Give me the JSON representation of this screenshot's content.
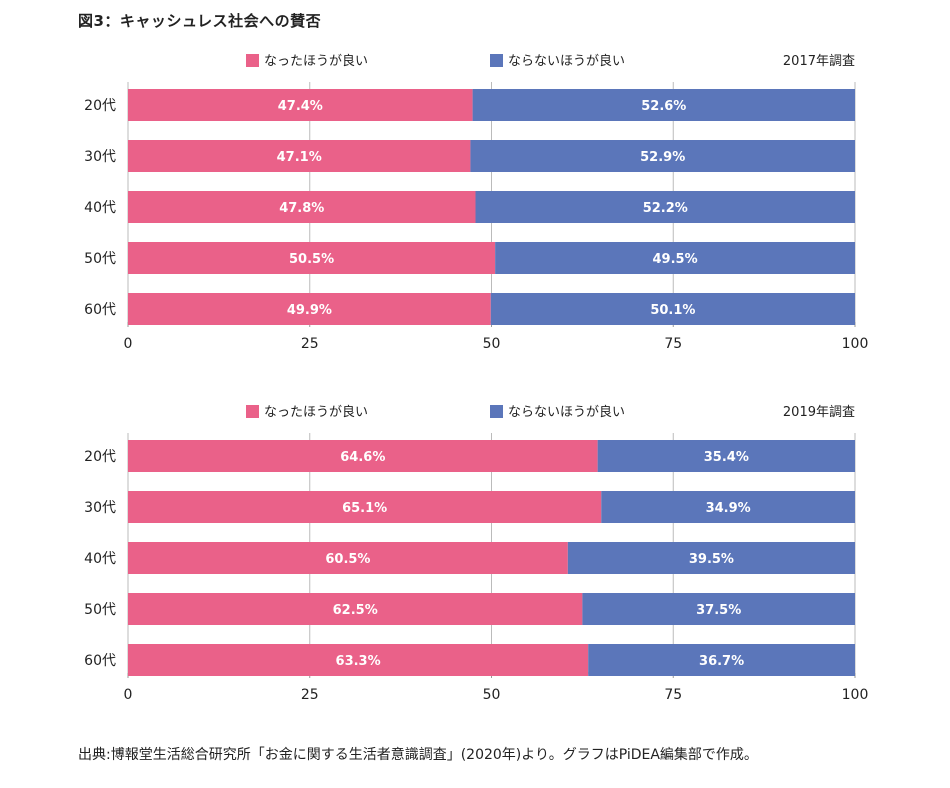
{
  "figure_title": "図3：キャッシュレス社会への賛否",
  "source_note": "出典:博報堂生活総合研究所「お金に関する生活者意識調査」(2020年)より。グラフはPiDEA編集部で作成。",
  "colors": {
    "series_a": "#ea6189",
    "series_b": "#5b76ba",
    "grid": "#bbbbbb"
  },
  "chart_data": [
    {
      "type": "bar",
      "orientation": "horizontal",
      "stacked": true,
      "survey_label": "2017年調査",
      "categories": [
        "20代",
        "30代",
        "40代",
        "50代",
        "60代"
      ],
      "series": [
        {
          "name": "なったほうが良い",
          "values": [
            47.4,
            47.1,
            47.8,
            50.5,
            49.9
          ],
          "labels": [
            "47.4%",
            "47.1%",
            "47.8%",
            "50.5%",
            "49.9%"
          ]
        },
        {
          "name": "ならないほうが良い",
          "values": [
            52.6,
            52.9,
            52.2,
            49.5,
            50.1
          ],
          "labels": [
            "52.6%",
            "52.9%",
            "52.2%",
            "49.5%",
            "50.1%"
          ]
        }
      ],
      "xlim": [
        0,
        100
      ],
      "xticks": [
        0,
        25,
        50,
        75,
        100
      ],
      "grid": true,
      "legend_position": "top"
    },
    {
      "type": "bar",
      "orientation": "horizontal",
      "stacked": true,
      "survey_label": "2019年調査",
      "categories": [
        "20代",
        "30代",
        "40代",
        "50代",
        "60代"
      ],
      "series": [
        {
          "name": "なったほうが良い",
          "values": [
            64.6,
            65.1,
            60.5,
            62.5,
            63.3
          ],
          "labels": [
            "64.6%",
            "65.1%",
            "60.5%",
            "62.5%",
            "63.3%"
          ]
        },
        {
          "name": "ならないほうが良い",
          "values": [
            35.4,
            34.9,
            39.5,
            37.5,
            36.7
          ],
          "labels": [
            "35.4%",
            "34.9%",
            "39.5%",
            "37.5%",
            "36.7%"
          ]
        }
      ],
      "xlim": [
        0,
        100
      ],
      "xticks": [
        0,
        25,
        50,
        75,
        100
      ],
      "grid": true,
      "legend_position": "top"
    }
  ]
}
